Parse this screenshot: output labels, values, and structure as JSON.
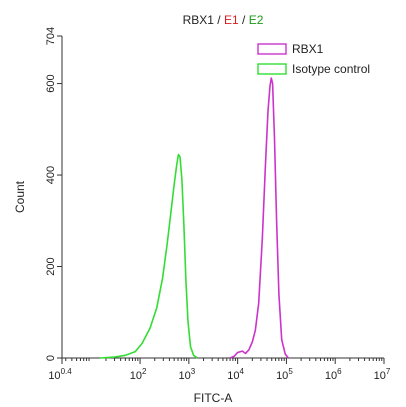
{
  "chart_data": {
    "type": "line",
    "title_parts": [
      {
        "text": "RBX1",
        "color": "#222222"
      },
      {
        "text": " / ",
        "color": "#222222"
      },
      {
        "text": "E1",
        "color": "#d62020"
      },
      {
        "text": " / ",
        "color": "#222222"
      },
      {
        "text": "E2",
        "color": "#1a9a1a"
      }
    ],
    "xlabel": "FITC-A",
    "ylabel": "Count",
    "x_scale": "log",
    "xlim": [
      2.512,
      10000000
    ],
    "ylim": [
      0,
      704
    ],
    "x_ticks": [
      {
        "value": 2.512,
        "base": "10",
        "exp": "0.4"
      },
      {
        "value": 100,
        "base": "10",
        "exp": "2"
      },
      {
        "value": 1000,
        "base": "10",
        "exp": "3"
      },
      {
        "value": 10000,
        "base": "10",
        "exp": "4"
      },
      {
        "value": 100000,
        "base": "10",
        "exp": "5"
      },
      {
        "value": 1000000,
        "base": "10",
        "exp": "6"
      },
      {
        "value": 10000000,
        "base": "10",
        "exp": "7"
      }
    ],
    "y_ticks": [
      0,
      200,
      400,
      600,
      704
    ],
    "legend_position": "top-right",
    "series": [
      {
        "name": "RBX1",
        "color": "#cc33cc",
        "points": [
          [
            7000,
            0
          ],
          [
            8500,
            4
          ],
          [
            10000,
            12
          ],
          [
            12500,
            15
          ],
          [
            14500,
            10
          ],
          [
            17000,
            18
          ],
          [
            20000,
            35
          ],
          [
            23000,
            60
          ],
          [
            27000,
            120
          ],
          [
            32000,
            260
          ],
          [
            37000,
            420
          ],
          [
            42000,
            540
          ],
          [
            46000,
            595
          ],
          [
            49000,
            612
          ],
          [
            52000,
            600
          ],
          [
            57000,
            480
          ],
          [
            63000,
            300
          ],
          [
            70000,
            140
          ],
          [
            80000,
            40
          ],
          [
            95000,
            8
          ],
          [
            110000,
            0
          ]
        ]
      },
      {
        "name": "Isotype control",
        "color": "#33dd33",
        "points": [
          [
            15,
            0
          ],
          [
            30,
            2
          ],
          [
            50,
            6
          ],
          [
            80,
            14
          ],
          [
            110,
            32
          ],
          [
            160,
            65
          ],
          [
            220,
            110
          ],
          [
            290,
            175
          ],
          [
            360,
            250
          ],
          [
            430,
            320
          ],
          [
            500,
            380
          ],
          [
            560,
            420
          ],
          [
            610,
            445
          ],
          [
            660,
            440
          ],
          [
            720,
            390
          ],
          [
            790,
            290
          ],
          [
            870,
            170
          ],
          [
            960,
            80
          ],
          [
            1080,
            25
          ],
          [
            1250,
            6
          ],
          [
            1500,
            0
          ]
        ]
      }
    ]
  }
}
